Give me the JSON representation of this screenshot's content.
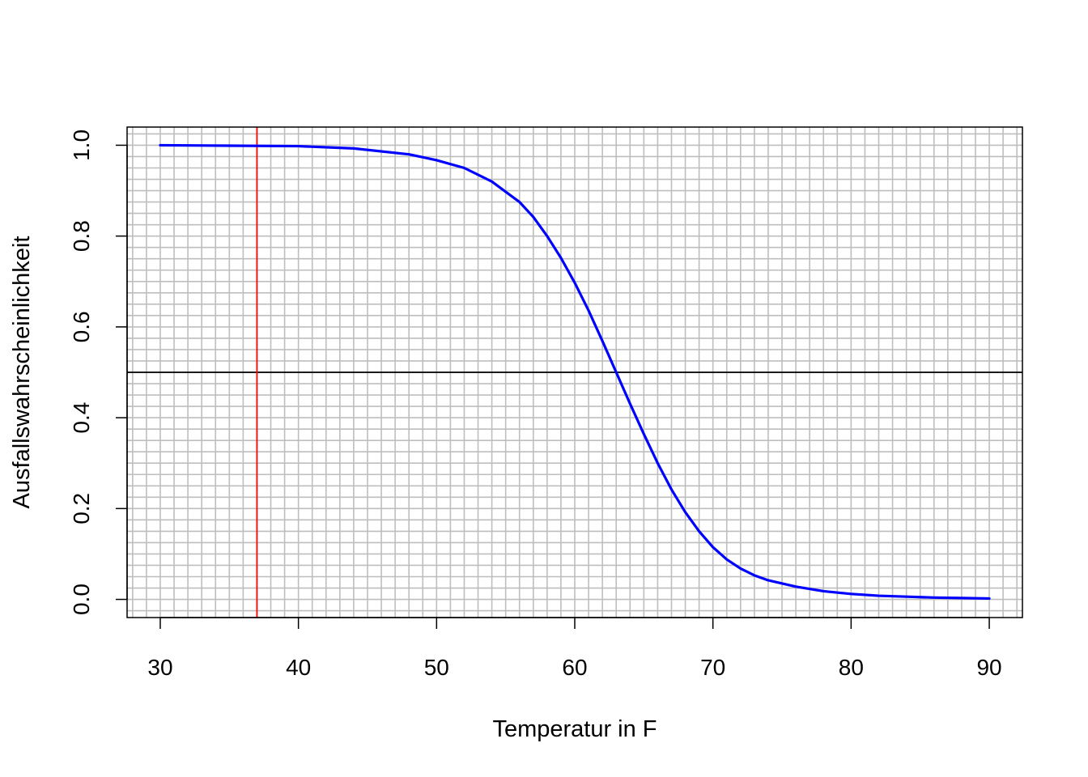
{
  "chart_data": {
    "type": "line",
    "title": "",
    "xlabel": "Temperatur in F",
    "ylabel": "Ausfallswahrscheinlichkeit",
    "xlim": [
      27.6,
      92.4
    ],
    "ylim": [
      -0.04,
      1.04
    ],
    "x_ticks": [
      30,
      40,
      50,
      60,
      70,
      80,
      90
    ],
    "x_tick_labels": [
      "30",
      "40",
      "50",
      "60",
      "70",
      "80",
      "90"
    ],
    "y_ticks": [
      0.0,
      0.2,
      0.4,
      0.6,
      0.8,
      1.0
    ],
    "y_tick_labels": [
      "0.0",
      "0.2",
      "0.4",
      "0.6",
      "0.8",
      "1.0"
    ],
    "grid": true,
    "grid_x_step": 1,
    "grid_y_step": 0.025,
    "grid_color": "#bebebe",
    "series": [
      {
        "color": "#0000ff",
        "x": [
          30,
          35,
          40,
          44,
          48,
          50,
          52,
          54,
          56,
          57,
          58,
          59,
          60,
          61,
          62,
          63,
          64,
          65,
          66,
          67,
          68,
          69,
          70,
          71,
          72,
          73,
          74,
          76,
          78,
          80,
          82,
          84,
          86,
          88,
          90
        ],
        "y": [
          1.0,
          0.999,
          0.998,
          0.993,
          0.98,
          0.967,
          0.95,
          0.92,
          0.875,
          0.842,
          0.8,
          0.752,
          0.697,
          0.636,
          0.569,
          0.5,
          0.431,
          0.364,
          0.3,
          0.242,
          0.192,
          0.15,
          0.115,
          0.088,
          0.068,
          0.053,
          0.042,
          0.028,
          0.018,
          0.012,
          0.008,
          0.006,
          0.004,
          0.003,
          0.002
        ]
      }
    ],
    "reference_lines": [
      {
        "orientation": "horizontal",
        "value": 0.5,
        "color": "#000000"
      },
      {
        "orientation": "vertical",
        "value": 37,
        "color": "#ff0000"
      }
    ]
  }
}
